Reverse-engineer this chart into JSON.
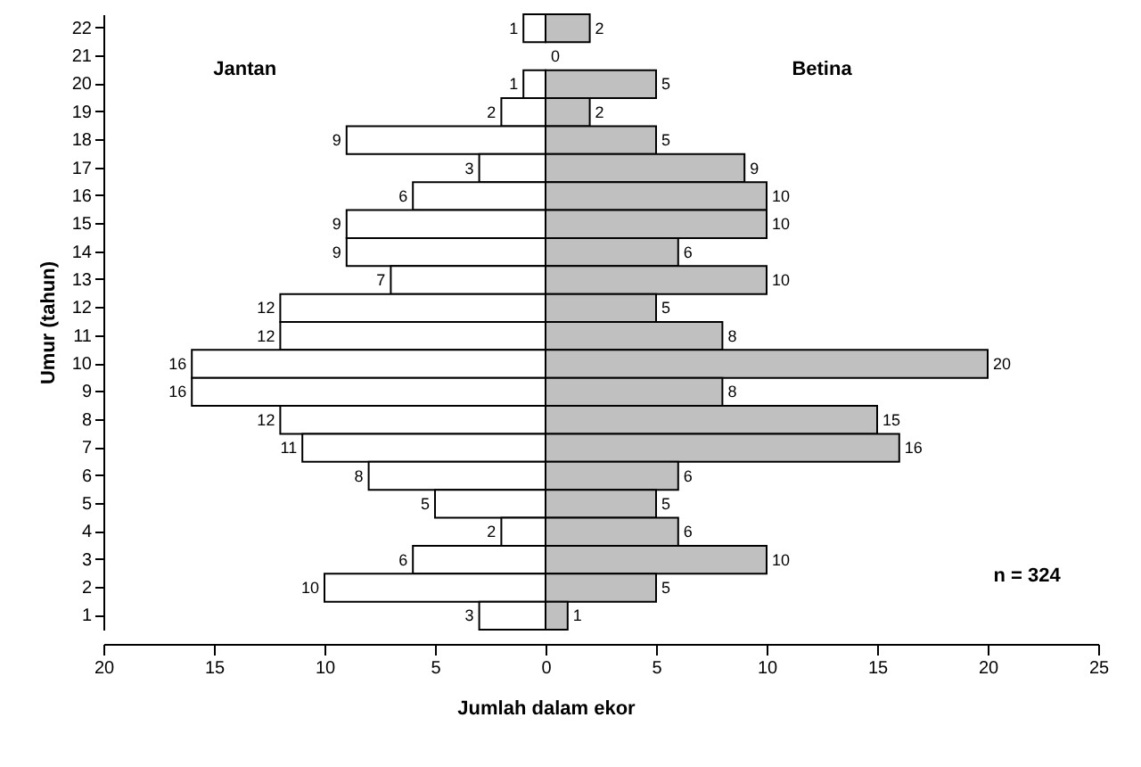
{
  "chart_data": [
    {
      "type": "bar",
      "orientation": "horizontal",
      "xlabel": "Jumlah dalam ekor",
      "ylabel": "Umur (tahun)",
      "categories": [
        "22",
        "21",
        "20",
        "19",
        "18",
        "17",
        "16",
        "15",
        "14",
        "13",
        "12",
        "11",
        "10",
        "9",
        "8",
        "7",
        "6",
        "5",
        "4",
        "3",
        "2",
        "1"
      ],
      "series": [
        {
          "name": "Jantan",
          "color": "#ffffff",
          "values": [
            1,
            0,
            1,
            2,
            9,
            3,
            6,
            9,
            9,
            7,
            12,
            12,
            16,
            16,
            12,
            11,
            8,
            5,
            2,
            6,
            10,
            3
          ],
          "value_labels": [
            "1",
            null,
            "1",
            "2",
            "9",
            "3",
            "6",
            "9",
            "9",
            "7",
            "12",
            "12",
            "16",
            "16",
            "12",
            "11",
            "8",
            "5",
            "2",
            "6",
            "10",
            "3"
          ]
        }
      ],
      "xlim": [
        20,
        0
      ],
      "xticks": [
        20,
        15,
        10,
        5,
        0
      ]
    },
    {
      "type": "bar",
      "orientation": "horizontal",
      "categories": [
        "22",
        "21",
        "20",
        "19",
        "18",
        "17",
        "16",
        "15",
        "14",
        "13",
        "12",
        "11",
        "10",
        "9",
        "8",
        "7",
        "6",
        "5",
        "4",
        "3",
        "2",
        "1"
      ],
      "series": [
        {
          "name": "Betina",
          "color": "#c0c0c0",
          "values": [
            2,
            0,
            5,
            2,
            5,
            9,
            10,
            10,
            6,
            10,
            5,
            8,
            20,
            8,
            15,
            16,
            6,
            5,
            6,
            10,
            5,
            1
          ]
        }
      ],
      "data_labels": true,
      "xlim": [
        0,
        25
      ],
      "xticks": [
        {
          "value": 0,
          "label": null
        },
        5,
        10,
        15,
        20,
        25
      ],
      "tick_labels": "x",
      "annotations": [
        "n = 324"
      ]
    }
  ]
}
